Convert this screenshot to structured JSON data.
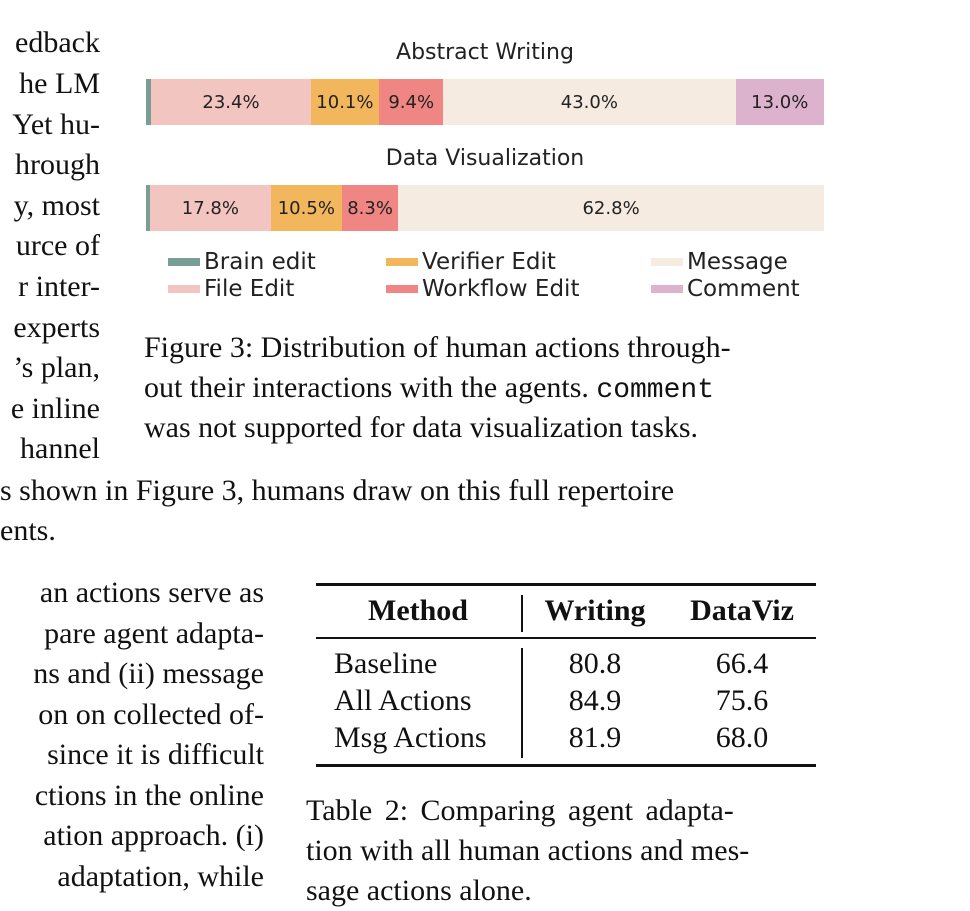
{
  "left_fragments": [
    "edback",
    "he LM",
    "Yet hu-",
    "hrough",
    "y, most",
    "urce of",
    "r inter-",
    "experts",
    "’s plan,",
    "e inline",
    "hannel"
  ],
  "body_continuation": [
    "s shown in Figure 3, humans draw on this full repertoire",
    "ents."
  ],
  "lower_left_fragments": [
    "an actions serve as",
    "pare agent adapta-",
    "ns and (ii) message",
    "on on collected of-",
    "since it is difficult",
    "ctions in the online",
    "ation approach. (i)",
    "adaptation, while"
  ],
  "chart_data": [
    {
      "type": "bar",
      "orientation": "horizontal-stacked",
      "title": "Abstract Writing",
      "categories": [
        "Brain edit",
        "File Edit",
        "Verifier Edit",
        "Workflow Edit",
        "Message",
        "Comment"
      ],
      "values": [
        0.8,
        23.4,
        10.1,
        9.4,
        43.0,
        13.0
      ],
      "labels": [
        "",
        "23.4%",
        "10.1%",
        "9.4%",
        "43.0%",
        "13.0%"
      ]
    },
    {
      "type": "bar",
      "orientation": "horizontal-stacked",
      "title": "Data Visualization",
      "categories": [
        "Brain edit",
        "File Edit",
        "Verifier Edit",
        "Workflow Edit",
        "Message"
      ],
      "values": [
        0.6,
        17.8,
        10.5,
        8.3,
        62.8
      ],
      "labels": [
        "",
        "17.8%",
        "10.5%",
        "8.3%",
        "62.8%"
      ]
    }
  ],
  "colors": {
    "Brain edit": "#7a9e96",
    "File Edit": "#f2c5c0",
    "Verifier Edit": "#f2b65c",
    "Workflow Edit": "#ef8683",
    "Message": "#f5ebe1",
    "Comment": "#ddb2cd"
  },
  "legend": [
    "Brain edit",
    "Verifier Edit",
    "Message",
    "File Edit",
    "Workflow Edit",
    "Comment"
  ],
  "figure_caption": {
    "line1": "Figure 3: Distribution of human actions through-",
    "line2_pre": "out their interactions with the agents. ",
    "line2_code": "comment",
    "line3": "was not supported for data visualization tasks."
  },
  "table": {
    "headers": [
      "Method",
      "Writing",
      "DataViz"
    ],
    "rows": [
      [
        "Baseline",
        "80.8",
        "66.4"
      ],
      [
        "All Actions",
        "84.9",
        "75.6"
      ],
      [
        "Msg Actions",
        "81.9",
        "68.0"
      ]
    ]
  },
  "table_caption": [
    "Table 2: Comparing agent adapta-",
    "tion with all human actions and mes-",
    "sage actions alone."
  ]
}
